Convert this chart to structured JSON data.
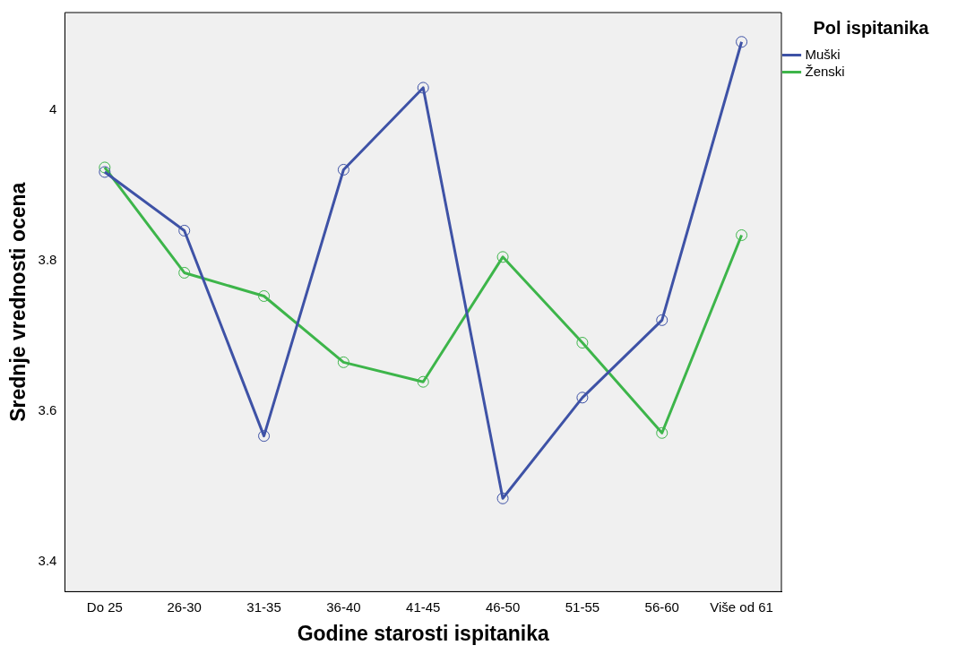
{
  "chart_data": {
    "type": "line",
    "xlabel": "Godine starosti ispitanika",
    "ylabel": "Srednje vrednosti ocena",
    "legend_title": "Pol ispitanika",
    "legend": "top right",
    "grid": false,
    "marker": "circle",
    "line_style": "solid",
    "categories": [
      "Do 25",
      "26-30",
      "31-35",
      "36-40",
      "41-45",
      "46-50",
      "51-55",
      "56-60",
      "Više od 61"
    ],
    "ylim": [
      3.36,
      4.13
    ],
    "yticks": [
      3.4,
      3.6,
      3.8,
      4
    ],
    "series": [
      {
        "name": "Muški",
        "color": "#3e52a6",
        "values": [
          3.918,
          3.84,
          3.567,
          3.921,
          4.03,
          3.484,
          3.618,
          3.721,
          4.091
        ]
      },
      {
        "name": "Ženski",
        "color": "#3db54a",
        "values": [
          3.924,
          3.784,
          3.753,
          3.665,
          3.639,
          3.805,
          3.691,
          3.571,
          3.834
        ]
      }
    ]
  }
}
